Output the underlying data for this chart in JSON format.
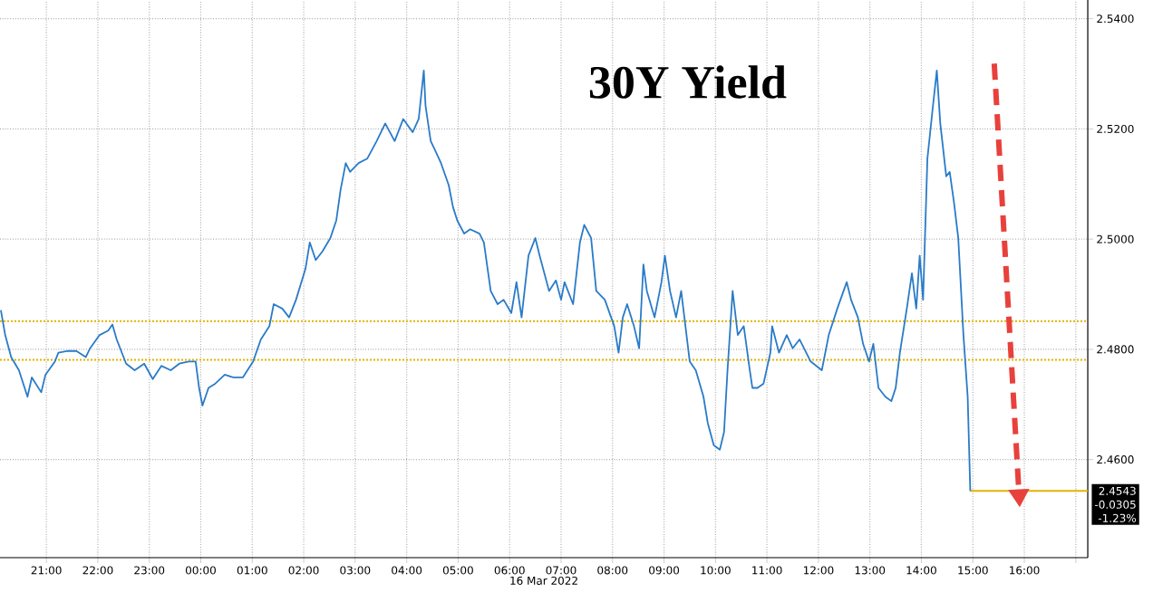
{
  "chart_data": {
    "type": "line",
    "title": "30Y Yield",
    "xlabel": "16 Mar 2022",
    "x": [
      "2022-03-15T20:07",
      "2022-03-15T20:12",
      "2022-03-15T20:19",
      "2022-03-15T20:28",
      "2022-03-15T20:38",
      "2022-03-15T20:43",
      "2022-03-15T20:54",
      "2022-03-15T20:59",
      "2022-03-15T21:10",
      "2022-03-15T21:14",
      "2022-03-15T21:25",
      "2022-03-15T21:35",
      "2022-03-15T21:46",
      "2022-03-15T21:51",
      "2022-03-15T22:02",
      "2022-03-15T22:12",
      "2022-03-15T22:17",
      "2022-03-15T22:22",
      "2022-03-15T22:33",
      "2022-03-15T22:43",
      "2022-03-15T22:54",
      "2022-03-15T23:04",
      "2022-03-15T23:14",
      "2022-03-15T23:25",
      "2022-03-15T23:35",
      "2022-03-15T23:46",
      "2022-03-15T23:54",
      "2022-03-15T23:58",
      "2022-03-16T00:02",
      "2022-03-16T00:09",
      "2022-03-16T00:17",
      "2022-03-16T00:28",
      "2022-03-16T00:38",
      "2022-03-16T00:49",
      "2022-03-16T01:01",
      "2022-03-16T01:10",
      "2022-03-16T01:20",
      "2022-03-16T01:25",
      "2022-03-16T01:35",
      "2022-03-16T01:43",
      "2022-03-16T01:51",
      "2022-03-16T02:02",
      "2022-03-16T02:07",
      "2022-03-16T02:14",
      "2022-03-16T02:22",
      "2022-03-16T02:31",
      "2022-03-16T02:38",
      "2022-03-16T02:43",
      "2022-03-16T02:49",
      "2022-03-16T02:54",
      "2022-03-16T03:04",
      "2022-03-16T03:14",
      "2022-03-16T03:25",
      "2022-03-16T03:35",
      "2022-03-16T03:46",
      "2022-03-16T03:56",
      "2022-03-16T04:07",
      "2022-03-16T04:14",
      "2022-03-16T04:20",
      "2022-03-16T04:22",
      "2022-03-16T04:28",
      "2022-03-16T04:33",
      "2022-03-16T04:40",
      "2022-03-16T04:49",
      "2022-03-16T04:54",
      "2022-03-16T04:59",
      "2022-03-16T05:07",
      "2022-03-16T05:14",
      "2022-03-16T05:25",
      "2022-03-16T05:30",
      "2022-03-16T05:38",
      "2022-03-16T05:46",
      "2022-03-16T05:53",
      "2022-03-16T06:02",
      "2022-03-16T06:08",
      "2022-03-16T06:14",
      "2022-03-16T06:22",
      "2022-03-16T06:30",
      "2022-03-16T06:35",
      "2022-03-16T06:46",
      "2022-03-16T06:54",
      "2022-03-16T07:00",
      "2022-03-16T07:04",
      "2022-03-16T07:14",
      "2022-03-16T07:22",
      "2022-03-16T07:27",
      "2022-03-16T07:35",
      "2022-03-16T07:41",
      "2022-03-16T07:51",
      "2022-03-16T08:02",
      "2022-03-16T08:07",
      "2022-03-16T08:12",
      "2022-03-16T08:17",
      "2022-03-16T08:25",
      "2022-03-16T08:31",
      "2022-03-16T08:36",
      "2022-03-16T08:40",
      "2022-03-16T08:49",
      "2022-03-16T08:57",
      "2022-03-16T09:01",
      "2022-03-16T09:07",
      "2022-03-16T09:14",
      "2022-03-16T09:20",
      "2022-03-16T09:30",
      "2022-03-16T09:37",
      "2022-03-16T09:46",
      "2022-03-16T09:51",
      "2022-03-16T09:58",
      "2022-03-16T10:05",
      "2022-03-16T10:10",
      "2022-03-16T10:14",
      "2022-03-16T10:20",
      "2022-03-16T10:26",
      "2022-03-16T10:33",
      "2022-03-16T10:40",
      "2022-03-16T10:43",
      "2022-03-16T10:49",
      "2022-03-16T10:56",
      "2022-03-16T11:04",
      "2022-03-16T11:06",
      "2022-03-16T11:14",
      "2022-03-16T11:23",
      "2022-03-16T11:30",
      "2022-03-16T11:38",
      "2022-03-16T11:51",
      "2022-03-16T12:04",
      "2022-03-16T12:12",
      "2022-03-16T12:22",
      "2022-03-16T12:33",
      "2022-03-16T12:38",
      "2022-03-16T12:46",
      "2022-03-16T12:52",
      "2022-03-16T12:59",
      "2022-03-16T13:04",
      "2022-03-16T13:10",
      "2022-03-16T13:18",
      "2022-03-16T13:25",
      "2022-03-16T13:30",
      "2022-03-16T13:35",
      "2022-03-16T13:43",
      "2022-03-16T13:49",
      "2022-03-16T13:54",
      "2022-03-16T13:58",
      "2022-03-16T14:02",
      "2022-03-16T14:07",
      "2022-03-16T14:13",
      "2022-03-16T14:18",
      "2022-03-16T14:22",
      "2022-03-16T14:29",
      "2022-03-16T14:33",
      "2022-03-16T14:38",
      "2022-03-16T14:43",
      "2022-03-16T14:49",
      "2022-03-16T14:54",
      "2022-03-16T14:57"
    ],
    "series": [
      {
        "color": "#2a7bc8",
        "values": [
          2.4871,
          2.4826,
          2.4786,
          2.4762,
          2.4714,
          2.4749,
          2.4722,
          2.4754,
          2.4778,
          2.4794,
          2.4797,
          2.4797,
          2.4786,
          2.4802,
          2.4826,
          2.4834,
          2.4845,
          2.4818,
          2.4774,
          2.4762,
          2.4774,
          2.4746,
          2.477,
          2.4762,
          2.4774,
          2.4778,
          2.4778,
          2.473,
          2.4698,
          2.473,
          2.4738,
          2.4754,
          2.4749,
          2.4749,
          2.4778,
          2.4818,
          2.4842,
          2.4882,
          2.4874,
          2.4858,
          2.489,
          2.4946,
          2.4994,
          2.4962,
          2.4978,
          2.5002,
          2.5034,
          2.509,
          2.5138,
          2.5122,
          2.5138,
          2.5146,
          2.5178,
          2.521,
          2.5178,
          2.5218,
          2.5194,
          2.5218,
          2.5306,
          2.5242,
          2.5178,
          2.5162,
          2.5138,
          2.5098,
          2.5058,
          2.5034,
          2.501,
          2.5018,
          2.501,
          2.4994,
          2.4906,
          2.4882,
          2.489,
          2.4866,
          2.4922,
          2.4858,
          2.497,
          2.5002,
          2.497,
          2.4906,
          2.4925,
          2.489,
          2.4922,
          2.4882,
          2.4994,
          2.5026,
          2.5002,
          2.4906,
          2.489,
          2.4842,
          2.4794,
          2.4858,
          2.4882,
          2.4842,
          2.4802,
          2.4954,
          2.4906,
          2.4858,
          2.4922,
          2.497,
          2.4906,
          2.4858,
          2.4906,
          2.4778,
          2.4762,
          2.4714,
          2.4666,
          2.4626,
          2.4618,
          2.465,
          2.4762,
          2.4906,
          2.4826,
          2.4842,
          2.4762,
          2.473,
          2.473,
          2.4738,
          2.4794,
          2.4842,
          2.4794,
          2.4826,
          2.4802,
          2.4818,
          2.4778,
          2.4762,
          2.4826,
          2.4874,
          2.4922,
          2.489,
          2.4858,
          2.481,
          2.4778,
          2.481,
          2.473,
          2.4714,
          2.4706,
          2.473,
          2.4794,
          2.4874,
          2.4938,
          2.4874,
          2.497,
          2.489,
          2.5146,
          2.5234,
          2.5306,
          2.521,
          2.5114,
          2.5122,
          2.5066,
          2.5002,
          2.4826,
          2.4714,
          2.4543
        ]
      }
    ],
    "xlim": [
      "2022-03-15T20:06",
      "2022-03-16T17:14"
    ],
    "ylim": [
      2.4422,
      2.5434
    ],
    "xticks": [
      {
        "value": "2022-03-15T21:00",
        "label": "21:00"
      },
      {
        "value": "2022-03-15T22:00",
        "label": "22:00"
      },
      {
        "value": "2022-03-15T23:00",
        "label": "23:00"
      },
      {
        "value": "2022-03-16T00:00",
        "label": "00:00"
      },
      {
        "value": "2022-03-16T01:00",
        "label": "01:00"
      },
      {
        "value": "2022-03-16T02:00",
        "label": "02:00"
      },
      {
        "value": "2022-03-16T03:00",
        "label": "03:00"
      },
      {
        "value": "2022-03-16T04:00",
        "label": "04:00"
      },
      {
        "value": "2022-03-16T05:00",
        "label": "05:00"
      },
      {
        "value": "2022-03-16T06:00",
        "label": "06:00"
      },
      {
        "value": "2022-03-16T07:00",
        "label": "07:00"
      },
      {
        "value": "2022-03-16T08:00",
        "label": "08:00"
      },
      {
        "value": "2022-03-16T09:00",
        "label": "09:00"
      },
      {
        "value": "2022-03-16T10:00",
        "label": "10:00"
      },
      {
        "value": "2022-03-16T11:00",
        "label": "11:00"
      },
      {
        "value": "2022-03-16T12:00",
        "label": "12:00"
      },
      {
        "value": "2022-03-16T13:00",
        "label": "13:00"
      },
      {
        "value": "2022-03-16T14:00",
        "label": "14:00"
      },
      {
        "value": "2022-03-16T15:00",
        "label": "15:00"
      },
      {
        "value": "2022-03-16T16:00",
        "label": "16:00"
      },
      {
        "value": "2022-03-16T17:00",
        "label": null
      }
    ],
    "yticks": [
      {
        "value": 2.46,
        "label": "2.4600"
      },
      {
        "value": 2.48,
        "label": "2.4800"
      },
      {
        "value": 2.5,
        "label": "2.5000"
      },
      {
        "value": 2.52,
        "label": "2.5200"
      },
      {
        "value": 2.54,
        "label": "2.5400"
      }
    ],
    "ref_lines": [
      {
        "axis": "y",
        "value": 2.4851,
        "color": "#e0b400",
        "line_style": "dotted"
      },
      {
        "axis": "y",
        "value": 2.4781,
        "color": "#e0b400",
        "line_style": "dotted"
      },
      {
        "axis": "y",
        "value": 2.4543,
        "label": "2.4543",
        "color": "#e0b400",
        "line_style": "solid"
      }
    ],
    "annotations": [
      "-0.0305",
      "-1.23%"
    ],
    "grid": true,
    "marker": "none",
    "line_style": "solid"
  }
}
